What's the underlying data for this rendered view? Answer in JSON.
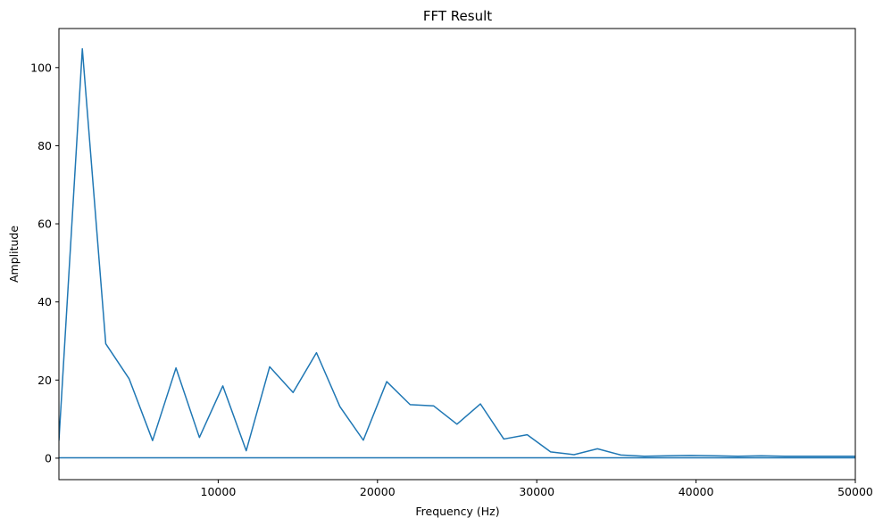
{
  "chart_data": {
    "type": "line",
    "title": "FFT Result",
    "xlabel": "Frequency (Hz)",
    "ylabel": "Amplitude",
    "xlim": [
      0,
      50000
    ],
    "ylim": [
      -5.5,
      110
    ],
    "xticks": [
      10000,
      20000,
      30000,
      40000,
      50000
    ],
    "xtick_labels": [
      "10000",
      "20000",
      "30000",
      "40000",
      "50000"
    ],
    "yticks": [
      0,
      20,
      40,
      60,
      80,
      100
    ],
    "ytick_labels": [
      "0",
      "20",
      "40",
      "60",
      "80",
      "100"
    ],
    "grid": false,
    "legend": false,
    "line_color": "#1f77b4",
    "series": [
      {
        "x": [
          0,
          1470,
          2940,
          4410,
          5880,
          7350,
          8820,
          10290,
          11760,
          13230,
          14700,
          16170,
          17640,
          19110,
          20580,
          22050,
          23520,
          24990,
          26460,
          27930,
          29400,
          30870,
          32340,
          33810,
          35280,
          36750,
          38220,
          39690,
          41160,
          42630,
          44100,
          45570,
          47040,
          48510,
          50000
        ],
        "values": [
          4.5,
          104.8,
          29.3,
          20.3,
          4.5,
          23.1,
          5.3,
          18.5,
          1.9,
          23.4,
          16.8,
          27.0,
          13.2,
          4.6,
          19.6,
          13.7,
          13.4,
          8.7,
          13.9,
          4.9,
          6.0,
          1.6,
          0.9,
          2.4,
          0.8,
          0.5,
          0.6,
          0.7,
          0.6,
          0.5,
          0.6,
          0.5,
          0.5,
          0.5,
          0.5
        ]
      },
      {
        "x": [
          0,
          50000
        ],
        "values": [
          0.1,
          0.1
        ]
      }
    ]
  }
}
